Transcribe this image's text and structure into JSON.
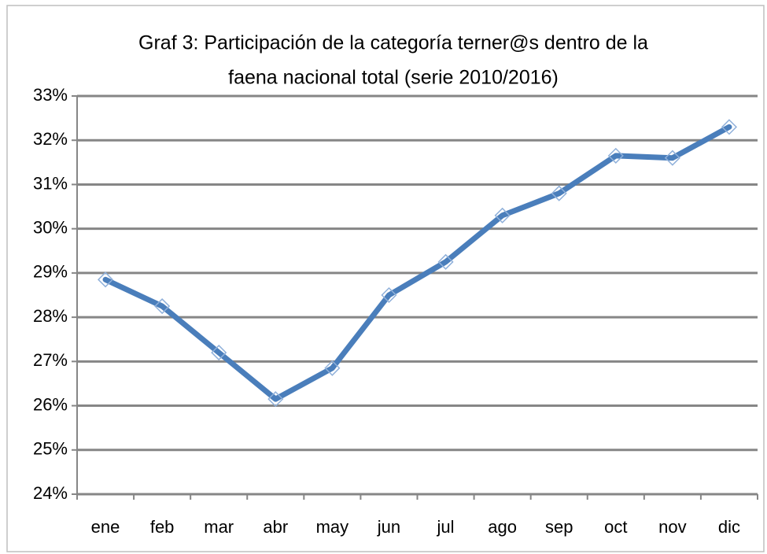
{
  "chart_data": {
    "type": "line",
    "title": [
      "Graf 3: Participación de la categoría terner@s dentro de la",
      "faena nacional total (serie 2010/2016)"
    ],
    "categories": [
      "ene",
      "feb",
      "mar",
      "abr",
      "may",
      "jun",
      "jul",
      "ago",
      "sep",
      "oct",
      "nov",
      "dic"
    ],
    "values": [
      28.85,
      28.25,
      27.2,
      26.15,
      26.85,
      28.5,
      29.25,
      30.3,
      30.8,
      31.65,
      31.6,
      32.3
    ],
    "color": "#4a7ebb",
    "ylim": [
      24,
      33
    ],
    "yticks": [
      {
        "value": 24,
        "label": "24%"
      },
      {
        "value": 25,
        "label": "25%"
      },
      {
        "value": 26,
        "label": "26%"
      },
      {
        "value": 27,
        "label": "27%"
      },
      {
        "value": 28,
        "label": "28%"
      },
      {
        "value": 29,
        "label": "29%"
      },
      {
        "value": 30,
        "label": "30%"
      },
      {
        "value": 31,
        "label": "31%"
      },
      {
        "value": 32,
        "label": "32%"
      },
      {
        "value": 33,
        "label": "33%"
      }
    ],
    "grid": true
  }
}
